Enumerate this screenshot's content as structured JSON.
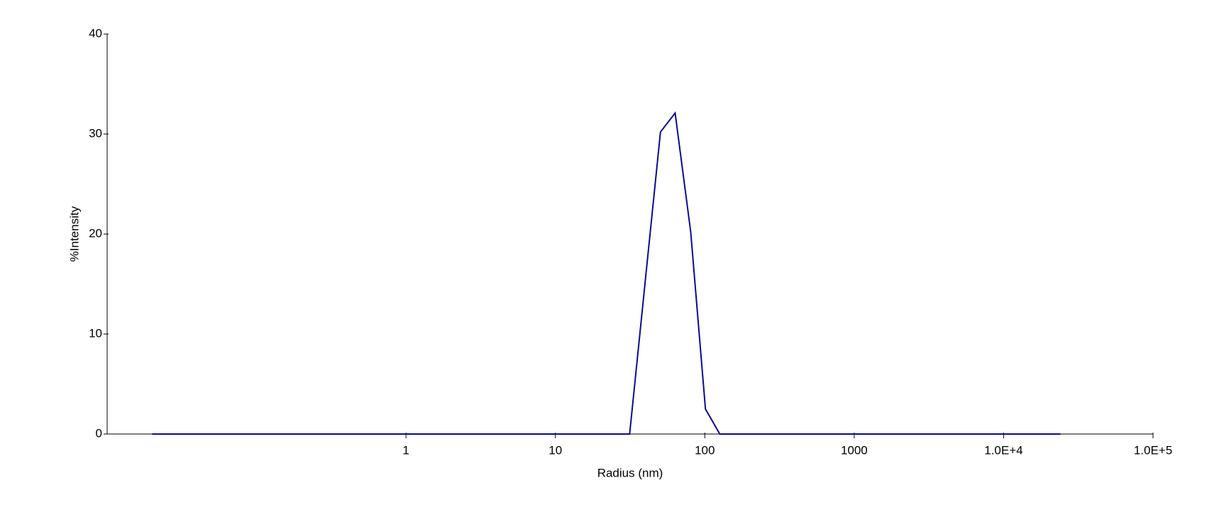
{
  "chart_data": {
    "type": "line",
    "xlabel": "Radius (nm)",
    "ylabel": "%Intensity",
    "log_x": true,
    "x": [
      0.02,
      31.4,
      50.5,
      63.3,
      80.5,
      101,
      126,
      24000
    ],
    "series": [
      {
        "color": "#0b0b8c",
        "values": [
          0,
          0,
          30.2,
          32.1,
          20.2,
          2.5,
          0,
          0
        ]
      }
    ],
    "xlim": [
      0.01,
      100000
    ],
    "xticks": [
      1,
      10,
      100,
      1000,
      {
        "value": 10000,
        "label": "1.0E+4"
      },
      {
        "value": 100000,
        "label": "1.0E+5"
      }
    ],
    "ylim": [
      0,
      40
    ],
    "yticks": [
      0,
      10,
      20,
      30,
      40
    ]
  }
}
